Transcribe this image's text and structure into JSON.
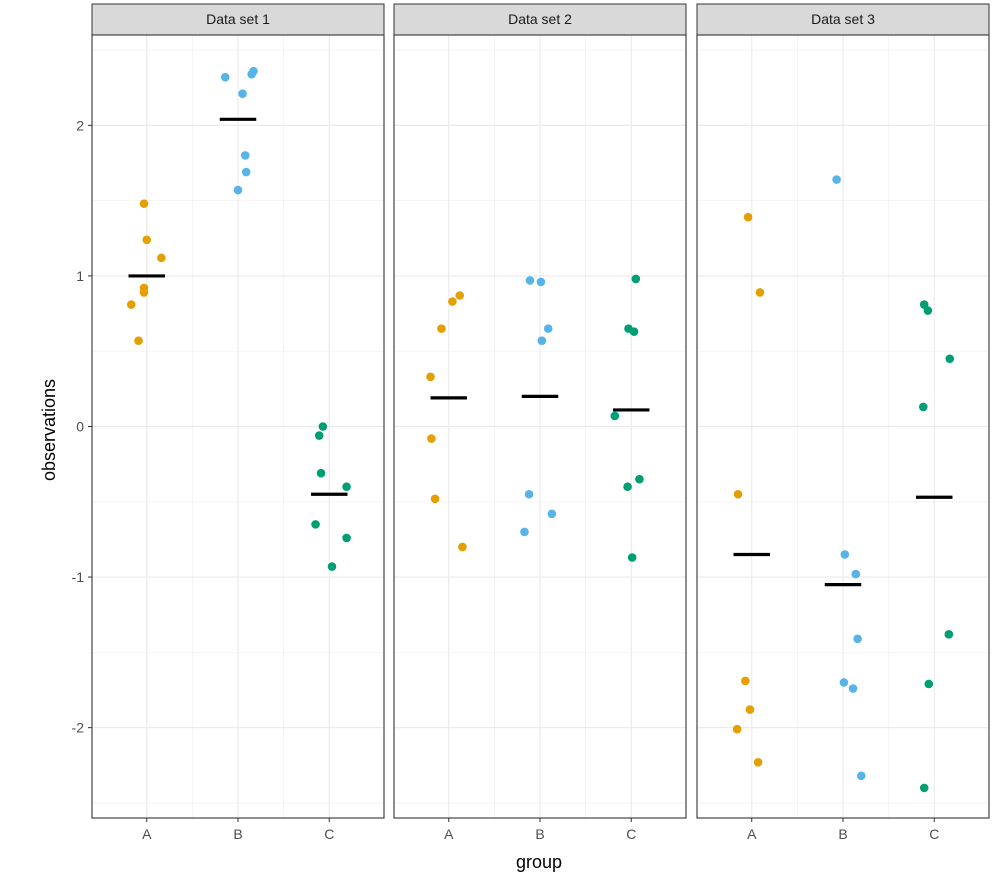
{
  "chart_data": {
    "type": "scatter",
    "xlabel": "group",
    "ylabel": "observations",
    "categories": [
      "A",
      "B",
      "C"
    ],
    "ylim": [
      -2.6,
      2.6
    ],
    "yticks": [
      -2,
      -1,
      0,
      1,
      2
    ],
    "ytick_labels": [
      "-2",
      "-1",
      "0",
      "1",
      "2"
    ],
    "grid": true,
    "legend": "none",
    "colors": {
      "A": "#E69F00",
      "B": "#56B4E9",
      "C": "#009E73",
      "mean": "#000000"
    },
    "panels": [
      {
        "title": "Data set 1",
        "points": {
          "A": [
            {
              "x": 0.97,
              "y": 1.48
            },
            {
              "x": 1.0,
              "y": 1.24
            },
            {
              "x": 1.16,
              "y": 1.12
            },
            {
              "x": 0.97,
              "y": 0.92
            },
            {
              "x": 0.97,
              "y": 0.89
            },
            {
              "x": 0.83,
              "y": 0.81
            },
            {
              "x": 0.91,
              "y": 0.57
            }
          ],
          "B": [
            {
              "x": 2.17,
              "y": 2.36
            },
            {
              "x": 2.15,
              "y": 2.34
            },
            {
              "x": 1.86,
              "y": 2.32
            },
            {
              "x": 2.05,
              "y": 2.21
            },
            {
              "x": 2.08,
              "y": 1.8
            },
            {
              "x": 2.09,
              "y": 1.69
            },
            {
              "x": 2.0,
              "y": 1.57
            }
          ],
          "C": [
            {
              "x": 2.93,
              "y": 0.0
            },
            {
              "x": 2.89,
              "y": -0.06
            },
            {
              "x": 2.91,
              "y": -0.31
            },
            {
              "x": 3.19,
              "y": -0.4
            },
            {
              "x": 2.85,
              "y": -0.65
            },
            {
              "x": 3.19,
              "y": -0.74
            },
            {
              "x": 3.03,
              "y": -0.93
            }
          ]
        },
        "means": {
          "A": 1.0,
          "B": 2.04,
          "C": -0.45
        }
      },
      {
        "title": "Data set 2",
        "points": {
          "A": [
            {
              "x": 1.12,
              "y": 0.87
            },
            {
              "x": 1.04,
              "y": 0.83
            },
            {
              "x": 0.92,
              "y": 0.65
            },
            {
              "x": 0.8,
              "y": 0.33
            },
            {
              "x": 0.81,
              "y": -0.08
            },
            {
              "x": 0.85,
              "y": -0.48
            },
            {
              "x": 1.15,
              "y": -0.8
            }
          ],
          "B": [
            {
              "x": 1.89,
              "y": 0.97
            },
            {
              "x": 2.01,
              "y": 0.96
            },
            {
              "x": 2.09,
              "y": 0.65
            },
            {
              "x": 2.02,
              "y": 0.57
            },
            {
              "x": 1.88,
              "y": -0.45
            },
            {
              "x": 2.13,
              "y": -0.58
            },
            {
              "x": 1.83,
              "y": -0.7
            }
          ],
          "C": [
            {
              "x": 3.05,
              "y": 0.98
            },
            {
              "x": 2.97,
              "y": 0.65
            },
            {
              "x": 3.03,
              "y": 0.63
            },
            {
              "x": 2.82,
              "y": 0.07
            },
            {
              "x": 3.09,
              "y": -0.35
            },
            {
              "x": 2.96,
              "y": -0.4
            },
            {
              "x": 3.01,
              "y": -0.87
            }
          ]
        },
        "means": {
          "A": 0.19,
          "B": 0.2,
          "C": 0.11
        }
      },
      {
        "title": "Data set 3",
        "points": {
          "A": [
            {
              "x": 0.96,
              "y": 1.39
            },
            {
              "x": 1.09,
              "y": 0.89
            },
            {
              "x": 0.85,
              "y": -0.45
            },
            {
              "x": 0.93,
              "y": -1.69
            },
            {
              "x": 0.98,
              "y": -1.88
            },
            {
              "x": 0.84,
              "y": -2.01
            },
            {
              "x": 1.07,
              "y": -2.23
            }
          ],
          "B": [
            {
              "x": 1.93,
              "y": 1.64
            },
            {
              "x": 2.02,
              "y": -0.85
            },
            {
              "x": 2.14,
              "y": -0.98
            },
            {
              "x": 2.16,
              "y": -1.41
            },
            {
              "x": 2.01,
              "y": -1.7
            },
            {
              "x": 2.11,
              "y": -1.74
            },
            {
              "x": 2.2,
              "y": -2.32
            }
          ],
          "C": [
            {
              "x": 2.89,
              "y": 0.81
            },
            {
              "x": 2.93,
              "y": 0.77
            },
            {
              "x": 3.17,
              "y": 0.45
            },
            {
              "x": 2.88,
              "y": 0.13
            },
            {
              "x": 3.16,
              "y": -1.38
            },
            {
              "x": 2.94,
              "y": -1.71
            },
            {
              "x": 2.89,
              "y": -2.4
            }
          ]
        },
        "means": {
          "A": -0.85,
          "B": -1.05,
          "C": -0.47
        }
      }
    ]
  }
}
